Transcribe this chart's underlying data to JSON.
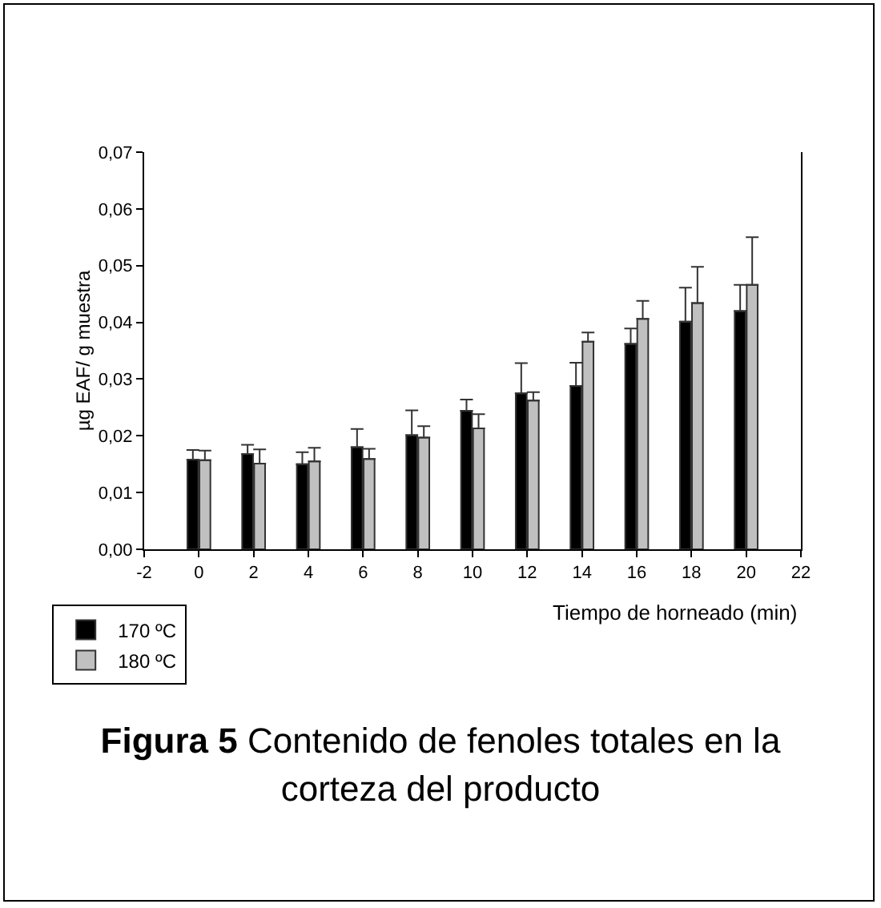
{
  "chart_data": {
    "type": "bar",
    "xlabel": "Tiempo de horneado (min)",
    "ylabel": "µg EAF/ g muestra",
    "x": [
      0,
      2,
      4,
      6,
      8,
      10,
      12,
      14,
      16,
      18,
      20
    ],
    "series": [
      {
        "name": "170 ºC",
        "color": "#000000",
        "values": [
          0.0158,
          0.0168,
          0.015,
          0.018,
          0.0201,
          0.0244,
          0.0275,
          0.0288,
          0.0362,
          0.0401,
          0.042
        ],
        "errors": [
          [
            0.0158,
            0.0175
          ],
          [
            0.0168,
            0.0184
          ],
          [
            0.015,
            0.0171
          ],
          [
            0.018,
            0.0212
          ],
          [
            0.0201,
            0.0245
          ],
          [
            0.0244,
            0.0264
          ],
          [
            0.0275,
            0.0328
          ],
          [
            0.0288,
            0.0329
          ],
          [
            0.0362,
            0.0389
          ],
          [
            0.0401,
            0.0461
          ],
          [
            0.042,
            0.0466
          ]
        ]
      },
      {
        "name": "180 ºC",
        "color": "#c0c0c0",
        "values": [
          0.0157,
          0.0151,
          0.0155,
          0.0159,
          0.0197,
          0.0213,
          0.0262,
          0.0366,
          0.0406,
          0.0434,
          0.0466
        ],
        "errors": [
          [
            0.0157,
            0.0174
          ],
          [
            0.0151,
            0.0176
          ],
          [
            0.0155,
            0.0179
          ],
          [
            0.0159,
            0.0177
          ],
          [
            0.0197,
            0.0217
          ],
          [
            0.0213,
            0.0238
          ],
          [
            0.0262,
            0.0277
          ],
          [
            0.0366,
            0.0382
          ],
          [
            0.0406,
            0.0438
          ],
          [
            0.0434,
            0.0498
          ],
          [
            0.0466,
            0.055
          ]
        ]
      }
    ],
    "xlim": [
      -2,
      22
    ],
    "xticks": [
      -2,
      0,
      2,
      4,
      6,
      8,
      10,
      12,
      14,
      16,
      18,
      20,
      22
    ],
    "ylim": [
      0,
      0.07
    ],
    "yticks": [
      {
        "value": 0,
        "label": "0,00"
      },
      {
        "value": 0.01,
        "label": "0,01"
      },
      {
        "value": 0.02,
        "label": "0,02"
      },
      {
        "value": 0.03,
        "label": "0,03"
      },
      {
        "value": 0.04,
        "label": "0,04"
      },
      {
        "value": 0.05,
        "label": "0,05"
      },
      {
        "value": 0.06,
        "label": "0,06"
      },
      {
        "value": 0.07,
        "label": "0,07"
      }
    ],
    "grid": false,
    "legend": "bottom left",
    "annotations": [
      "Figura 5 Contenido de fenoles totales en la corteza del producto"
    ]
  }
}
